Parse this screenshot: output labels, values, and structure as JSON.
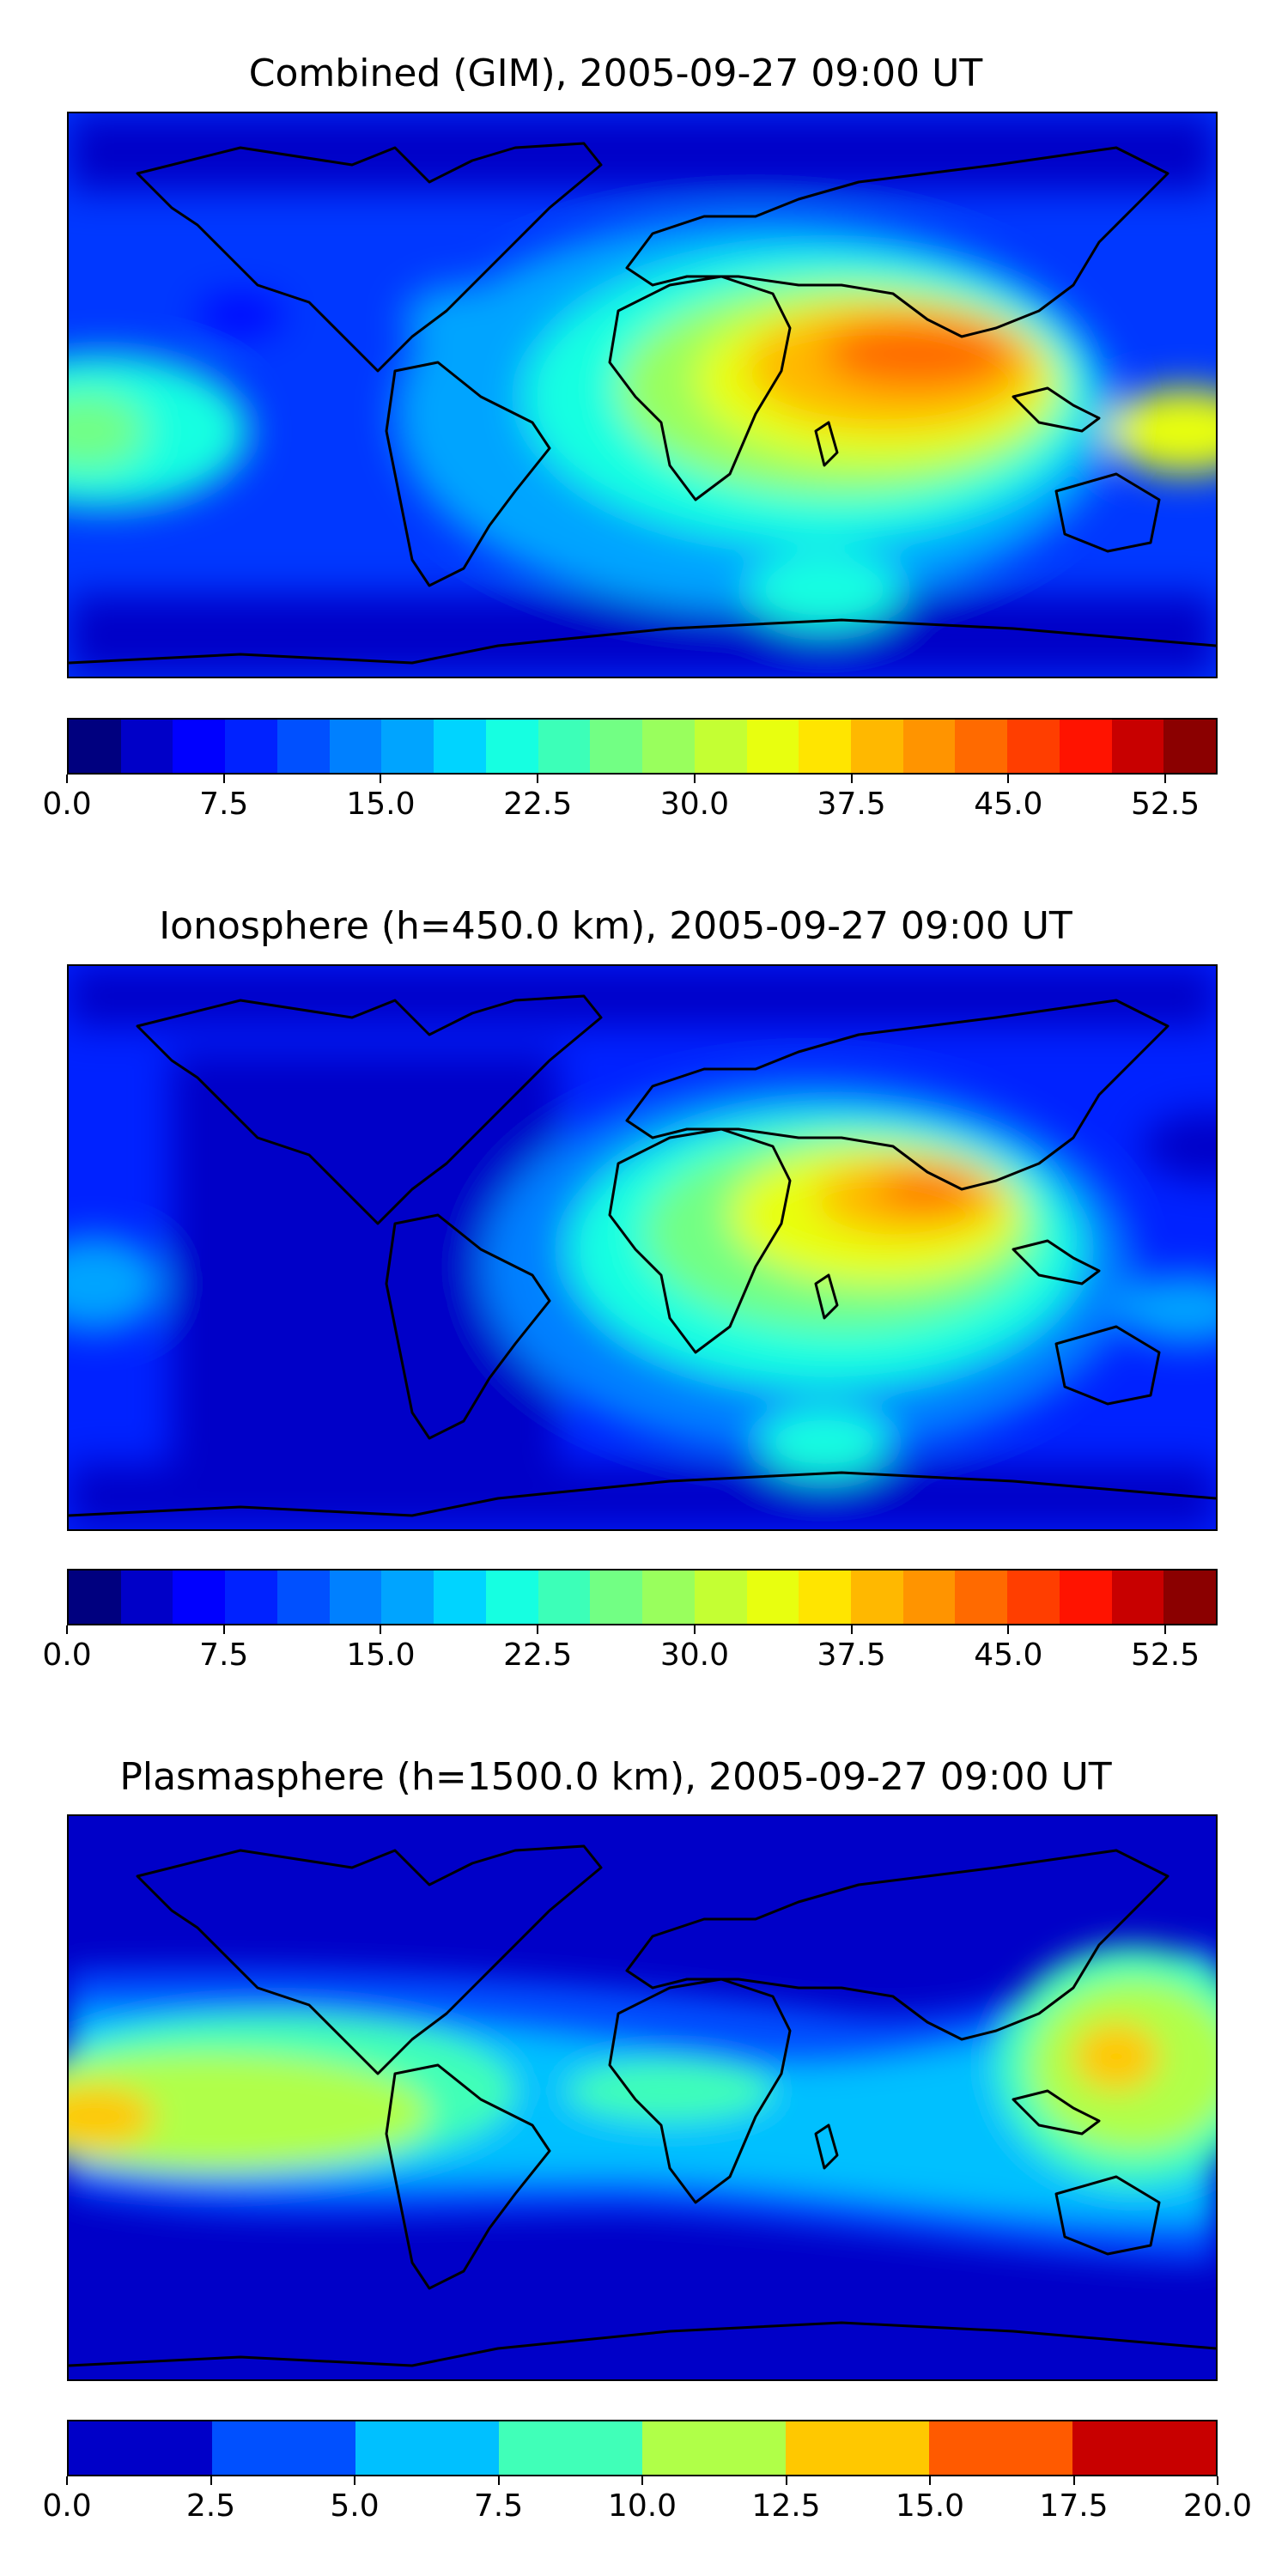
{
  "panels": [
    {
      "id": "combined",
      "title": "Combined (GIM), 2005-09-27 09:00 UT",
      "colorbar": {
        "min": 0.0,
        "max": 55.0,
        "colors": [
          "#00007f",
          "#0000c8",
          "#0000ff",
          "#0022ff",
          "#0050ff",
          "#0080ff",
          "#00a4ff",
          "#00d4ff",
          "#16ffe1",
          "#3cffb8",
          "#72ff84",
          "#99ff5d",
          "#c4ff33",
          "#e8ff0f",
          "#ffe500",
          "#ffb800",
          "#ff9400",
          "#ff6a00",
          "#ff3e00",
          "#ff1300",
          "#c80000",
          "#8b0000"
        ],
        "ticks": [
          "0.0",
          "7.5",
          "15.0",
          "22.5",
          "30.0",
          "37.5",
          "45.0",
          "52.5"
        ],
        "tick_values": [
          0,
          7.5,
          15,
          22.5,
          30,
          37.5,
          45,
          52.5
        ]
      }
    },
    {
      "id": "ionosphere",
      "title": "Ionosphere  (h=450.0 km), 2005-09-27 09:00 UT",
      "colorbar": {
        "min": 0.0,
        "max": 55.0,
        "colors": [
          "#00007f",
          "#0000c8",
          "#0000ff",
          "#0022ff",
          "#0050ff",
          "#0080ff",
          "#00a4ff",
          "#00d4ff",
          "#16ffe1",
          "#3cffb8",
          "#72ff84",
          "#99ff5d",
          "#c4ff33",
          "#e8ff0f",
          "#ffe500",
          "#ffb800",
          "#ff9400",
          "#ff6a00",
          "#ff3e00",
          "#ff1300",
          "#c80000",
          "#8b0000"
        ],
        "ticks": [
          "0.0",
          "7.5",
          "15.0",
          "22.5",
          "30.0",
          "37.5",
          "45.0",
          "52.5"
        ],
        "tick_values": [
          0,
          7.5,
          15,
          22.5,
          30,
          37.5,
          45,
          52.5
        ]
      }
    },
    {
      "id": "plasmasphere",
      "title": "Plasmasphere (h=1500.0 km), 2005-09-27 09:00 UT",
      "colorbar": {
        "min": 0.0,
        "max": 20.0,
        "colors": [
          "#0000c8",
          "#0050ff",
          "#00c0ff",
          "#40ffb8",
          "#b0ff48",
          "#ffc800",
          "#ff5a00",
          "#c80000"
        ],
        "ticks": [
          "0.0",
          "2.5",
          "5.0",
          "7.5",
          "10.0",
          "12.5",
          "15.0",
          "17.5",
          "20.0"
        ],
        "tick_values": [
          0,
          2.5,
          5,
          7.5,
          10,
          12.5,
          15,
          17.5,
          20
        ]
      }
    }
  ]
}
